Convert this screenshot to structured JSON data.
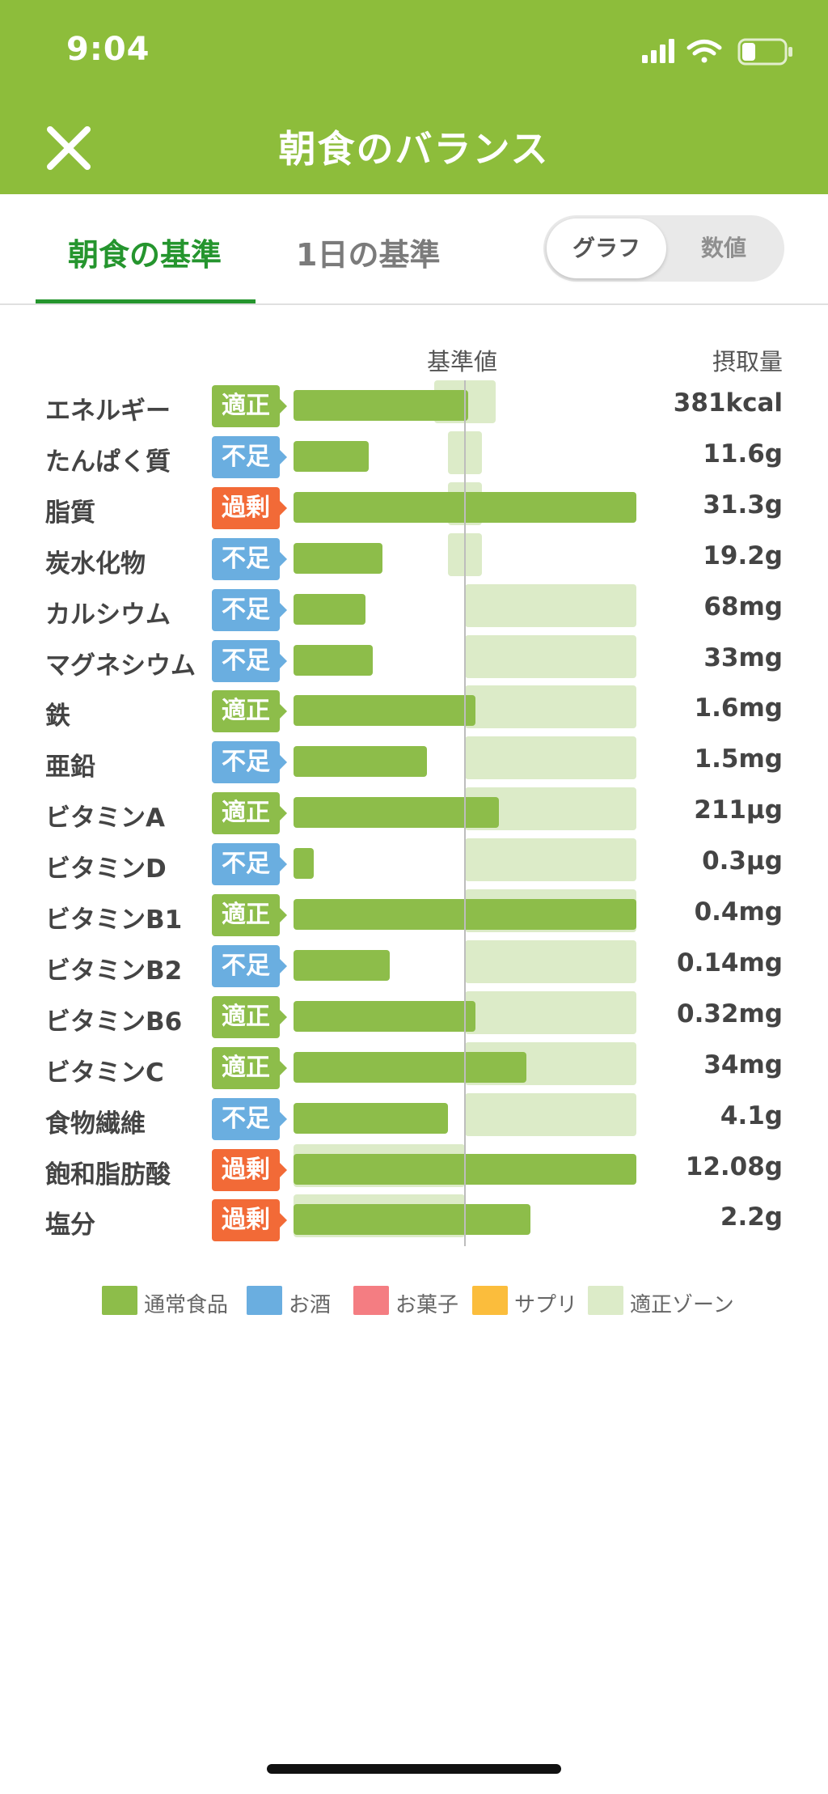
{
  "status_bar": {
    "time": "9:04"
  },
  "header": {
    "title": "朝食のバランス",
    "close_icon": "close-icon"
  },
  "tabs": [
    {
      "label": "朝食の基準",
      "active": true
    },
    {
      "label": "1日の基準",
      "active": false
    }
  ],
  "view_toggle": {
    "graph_label": "グラフ",
    "value_label": "数値",
    "selected": "グラフ"
  },
  "table": {
    "reference_header": "基準値",
    "intake_header": "摂取量",
    "colors": {
      "適正": "#8dbd4a",
      "不足": "#6aaee0",
      "過剰": "#f26a37",
      "bar": "#8dbd4a",
      "zone": "#dcebc8"
    },
    "rows": [
      {
        "label": "エネルギー",
        "status": "適正",
        "value": "381kcal",
        "bar": 0.51,
        "zone": [
          0.41,
          0.59
        ]
      },
      {
        "label": "たんぱく質",
        "status": "不足",
        "value": "11.6g",
        "bar": 0.22,
        "zone": [
          0.45,
          0.55
        ]
      },
      {
        "label": "脂質",
        "status": "過剰",
        "value": "31.3g",
        "bar": 1.0,
        "zone": [
          0.45,
          0.55
        ]
      },
      {
        "label": "炭水化物",
        "status": "不足",
        "value": "19.2g",
        "bar": 0.26,
        "zone": [
          0.45,
          0.55
        ]
      },
      {
        "label": "カルシウム",
        "status": "不足",
        "value": "68mg",
        "bar": 0.21,
        "zone": [
          0.5,
          1.0
        ]
      },
      {
        "label": "マグネシウム",
        "status": "不足",
        "value": "33mg",
        "bar": 0.23,
        "zone": [
          0.5,
          1.0
        ]
      },
      {
        "label": "鉄",
        "status": "適正",
        "value": "1.6mg",
        "bar": 0.53,
        "zone": [
          0.5,
          1.0
        ]
      },
      {
        "label": "亜鉛",
        "status": "不足",
        "value": "1.5mg",
        "bar": 0.39,
        "zone": [
          0.5,
          1.0
        ]
      },
      {
        "label": "ビタミンA",
        "status": "適正",
        "value": "211μg",
        "bar": 0.6,
        "zone": [
          0.5,
          1.0
        ]
      },
      {
        "label": "ビタミンD",
        "status": "不足",
        "value": "0.3μg",
        "bar": 0.06,
        "zone": [
          0.5,
          1.0
        ]
      },
      {
        "label": "ビタミンB1",
        "status": "適正",
        "value": "0.4mg",
        "bar": 1.0,
        "zone": [
          0.5,
          1.0
        ]
      },
      {
        "label": "ビタミンB2",
        "status": "不足",
        "value": "0.14mg",
        "bar": 0.28,
        "zone": [
          0.5,
          1.0
        ]
      },
      {
        "label": "ビタミンB6",
        "status": "適正",
        "value": "0.32mg",
        "bar": 0.53,
        "zone": [
          0.5,
          1.0
        ]
      },
      {
        "label": "ビタミンC",
        "status": "適正",
        "value": "34mg",
        "bar": 0.68,
        "zone": [
          0.5,
          1.0
        ]
      },
      {
        "label": "食物繊維",
        "status": "不足",
        "value": "4.1g",
        "bar": 0.45,
        "zone": [
          0.5,
          1.0
        ]
      },
      {
        "label": "飽和脂肪酸",
        "status": "過剰",
        "value": "12.08g",
        "bar": 1.0,
        "zone": [
          0.0,
          0.5
        ]
      },
      {
        "label": "塩分",
        "status": "過剰",
        "value": "2.2g",
        "bar": 0.69,
        "zone": [
          0.0,
          0.5
        ]
      }
    ]
  },
  "legend": [
    {
      "label": "通常食品",
      "color": "#8dbd4a"
    },
    {
      "label": "お酒",
      "color": "#6aaee0"
    },
    {
      "label": "お菓子",
      "color": "#f47d82"
    },
    {
      "label": "サプリ",
      "color": "#fbbd3c"
    },
    {
      "label": "適正ゾーン",
      "color": "#dcebc8"
    }
  ]
}
